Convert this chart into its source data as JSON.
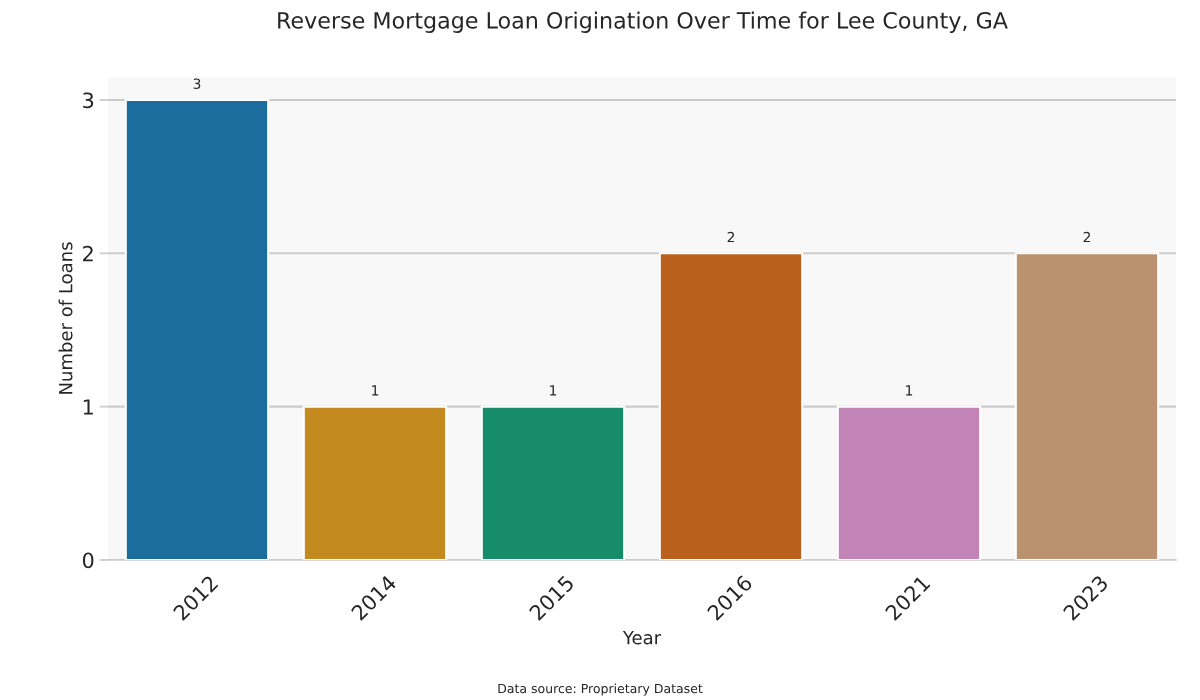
{
  "chart_data": {
    "type": "bar",
    "title": "Reverse Mortgage Loan Origination Over Time for Lee County, GA",
    "xlabel": "Year",
    "ylabel": "Number of Loans",
    "categories": [
      "2012",
      "2014",
      "2015",
      "2016",
      "2021",
      "2023"
    ],
    "values": [
      3,
      1,
      1,
      2,
      1,
      2
    ],
    "colors": [
      "#1a6d9c",
      "#c4891f",
      "#178c6b",
      "#b9601d",
      "#c283b6",
      "#bb926f"
    ],
    "ylim": [
      0,
      3.15
    ],
    "yticks": [
      0,
      1,
      2,
      3
    ],
    "grid": "y",
    "data_labels": true,
    "annotations": [
      "Data source: Proprietary Dataset"
    ]
  }
}
